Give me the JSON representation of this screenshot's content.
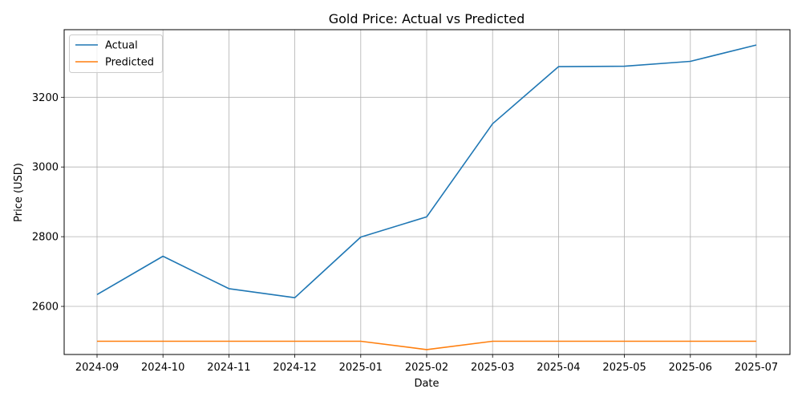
{
  "chart_data": {
    "type": "line",
    "title": "Gold Price: Actual vs Predicted",
    "xlabel": "Date",
    "ylabel": "Price (USD)",
    "x": [
      "2024-09",
      "2024-10",
      "2024-11",
      "2024-12",
      "2025-01",
      "2025-02",
      "2025-03",
      "2025-04",
      "2025-05",
      "2025-06",
      "2025-07"
    ],
    "series": [
      {
        "name": "Actual",
        "color": "#1f77b4",
        "values": [
          2634,
          2744,
          2651,
          2625,
          2799,
          2857,
          3124,
          3288,
          3289,
          3303,
          3350
        ]
      },
      {
        "name": "Predicted",
        "color": "#ff7f0e",
        "values": [
          2500,
          2500,
          2500,
          2500,
          2500,
          2476,
          2500,
          2500,
          2500,
          2500,
          2500
        ]
      }
    ],
    "yticks": [
      2600,
      2800,
      3000,
      3200
    ],
    "ylim": [
      2462,
      3394
    ],
    "grid": true,
    "legend": "upper-left"
  }
}
